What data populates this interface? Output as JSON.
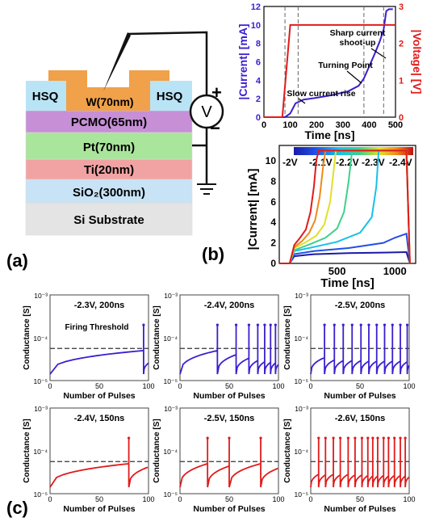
{
  "panel_labels": [
    "(a)",
    "(b)",
    "(c)"
  ],
  "device": {
    "layers": [
      {
        "label": "W(70nm)",
        "color": "#f0a14a"
      },
      {
        "label": "HSQ",
        "color": "#b9e4f5"
      },
      {
        "label": "PCMO(65nm)",
        "color": "#c68fd6"
      },
      {
        "label": "Pt(70nm)",
        "color": "#a9e59a"
      },
      {
        "label": "Ti(20nm)",
        "color": "#f1a3a3"
      },
      {
        "label": "SiO₂(300nm)",
        "color": "#c7e3f5"
      },
      {
        "label": "Si Substrate",
        "color": "#e4e4e4"
      }
    ],
    "meter_label": "V",
    "plus": "+",
    "minus": "−"
  },
  "chart_data": [
    {
      "type": "line",
      "xlabel": "Time [ns]",
      "ylabel_left": "|Current| [mA]",
      "ylabel_right": "|Voltage| [V]",
      "xlim": [
        0,
        500
      ],
      "ylim_left": [
        0,
        12
      ],
      "ylim_right": [
        0,
        3
      ],
      "xticks": [
        0,
        100,
        200,
        300,
        400,
        500
      ],
      "yticks_left": [
        0,
        2,
        4,
        6,
        8,
        10,
        12
      ],
      "yticks_right": [
        0,
        1,
        2,
        3
      ],
      "series": [
        {
          "color": "#3a1fd0",
          "axis": "left",
          "x": [
            0,
            80,
            100,
            120,
            150,
            200,
            260,
            320,
            360,
            380,
            400,
            420,
            440,
            455,
            465,
            475,
            490
          ],
          "y": [
            0,
            0,
            0.4,
            1.5,
            1.9,
            2.1,
            2.4,
            2.8,
            3.4,
            4.2,
            5.5,
            6.8,
            8.2,
            9.5,
            11.5,
            11.7,
            11.7
          ]
        },
        {
          "color": "#e01b1b",
          "axis": "right",
          "x": [
            0,
            70,
            100,
            490,
            500
          ],
          "y": [
            0,
            0,
            2.5,
            2.5,
            2.5
          ]
        }
      ],
      "dashed_x": [
        80,
        130,
        380,
        455
      ],
      "annotations": [
        "Sharp current shoot-up",
        "Turning Point",
        "Slow current rise"
      ]
    },
    {
      "type": "line",
      "xlabel": "Time [ns]",
      "ylabel": "|Current| [mA]",
      "xlim": [
        0,
        1180
      ],
      "ylim": [
        0,
        11.5
      ],
      "xticks": [
        500,
        1000
      ],
      "yticks": [
        0,
        2,
        4,
        6,
        8,
        10
      ],
      "colorbar_labels": [
        "-2V",
        "-2.1V",
        "-2.2V",
        "-2.3V",
        "-2.4V"
      ],
      "series": [
        {
          "color": "#1a1aa8",
          "x": [
            0,
            90,
            130,
            300,
            600,
            900,
            1100,
            1130
          ],
          "y": [
            0,
            0,
            0.7,
            0.9,
            1.0,
            1.05,
            1.1,
            0
          ]
        },
        {
          "color": "#2050e8",
          "x": [
            0,
            90,
            130,
            300,
            600,
            900,
            1000,
            1100,
            1130
          ],
          "y": [
            0,
            0,
            0.9,
            1.2,
            1.5,
            2.0,
            2.5,
            2.9,
            0
          ]
        },
        {
          "color": "#19c0e8",
          "x": [
            0,
            90,
            130,
            300,
            500,
            700,
            800,
            840,
            860,
            1100,
            1130
          ],
          "y": [
            0,
            0,
            1.2,
            1.6,
            2.1,
            3.0,
            4.5,
            7.5,
            11,
            11,
            0
          ]
        },
        {
          "color": "#3fd08a",
          "x": [
            0,
            90,
            130,
            250,
            400,
            500,
            560,
            600,
            630,
            1100,
            1130
          ],
          "y": [
            0,
            0,
            1.3,
            1.8,
            2.5,
            3.4,
            5.0,
            8.0,
            11,
            11,
            0
          ]
        },
        {
          "color": "#e0e02a",
          "x": [
            0,
            90,
            130,
            220,
            320,
            390,
            440,
            470,
            490,
            1100,
            1130
          ],
          "y": [
            0,
            0,
            1.5,
            2.0,
            2.7,
            3.8,
            6.0,
            9.0,
            11,
            11,
            0
          ]
        },
        {
          "color": "#f08a1a",
          "x": [
            0,
            90,
            130,
            200,
            260,
            310,
            350,
            380,
            400,
            1100,
            1130
          ],
          "y": [
            0,
            0,
            1.6,
            2.2,
            3.0,
            4.2,
            6.5,
            9.5,
            11,
            11,
            0
          ]
        },
        {
          "color": "#e01b1b",
          "x": [
            0,
            90,
            130,
            180,
            230,
            270,
            300,
            320,
            340,
            1100,
            1130
          ],
          "y": [
            0,
            0,
            1.8,
            2.5,
            3.3,
            5.0,
            7.5,
            10,
            11,
            11,
            0
          ]
        }
      ]
    },
    {
      "type": "line",
      "title": "-2.3V, 200ns",
      "annotation": "Firing Threshold",
      "color": "#3a1fd0",
      "spikes": [
        95
      ],
      "xlabel": "Number of Pulses",
      "ylabel": "Conductance [S]"
    },
    {
      "type": "line",
      "title": "-2.4V, 200ns",
      "color": "#3a1fd0",
      "spikes": [
        38,
        57,
        70,
        79,
        86,
        92,
        97
      ],
      "xlabel": "Number of Pulses",
      "ylabel": "Conductance [S]"
    },
    {
      "type": "line",
      "title": "-2.5V, 200ns",
      "color": "#3a1fd0",
      "spikes": [
        14,
        24,
        33,
        42,
        51,
        59,
        67,
        75,
        83,
        91,
        98
      ],
      "xlabel": "Number of Pulses",
      "ylabel": "Conductance [S]"
    },
    {
      "type": "line",
      "title": "-2.4V, 150ns",
      "color": "#e01b1b",
      "spikes": [
        80
      ],
      "xlabel": "Number of Pulses",
      "ylabel": "Conductance [S]"
    },
    {
      "type": "line",
      "title": "-2.5V, 150ns",
      "color": "#e01b1b",
      "spikes": [
        28,
        50,
        82
      ],
      "xlabel": "Number of Pulses",
      "ylabel": "Conductance [S]"
    },
    {
      "type": "line",
      "title": "-2.6V, 150ns",
      "color": "#e01b1b",
      "spikes": [
        8,
        15,
        23,
        30,
        38,
        45,
        52,
        58,
        63,
        68,
        74,
        79,
        85,
        91,
        96
      ],
      "xlabel": "Number of Pulses",
      "ylabel": "Conductance [S]"
    }
  ],
  "conductance_axis": {
    "xticks": [
      0,
      50,
      100
    ],
    "ytick_labels": [
      "10⁻³",
      "10⁻⁴",
      "10⁻⁵"
    ],
    "threshold_exp": -4.25
  }
}
